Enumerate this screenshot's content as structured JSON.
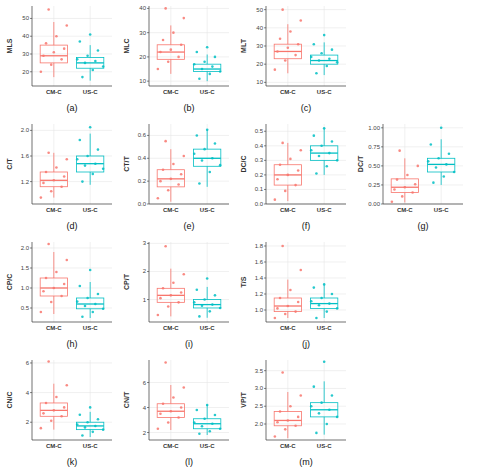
{
  "chart_data": [
    {
      "type": "box",
      "title": "(a)",
      "y_label": "MLS",
      "categories": [
        "CM-C",
        "US-C"
      ],
      "ylim": [
        12,
        57
      ],
      "yticks": [
        20,
        30,
        40,
        50
      ],
      "grid": true,
      "series": [
        {
          "color": "#f8766d",
          "box": [
            17,
            25,
            29,
            35,
            48
          ],
          "points": [
            20,
            24,
            27,
            29,
            31,
            33,
            36,
            40,
            46,
            55
          ]
        },
        {
          "color": "#00bfc4",
          "box": [
            15,
            22,
            25,
            28,
            35
          ],
          "points": [
            17,
            21,
            23,
            25,
            26,
            27,
            29,
            32,
            37,
            41
          ]
        }
      ]
    },
    {
      "type": "box",
      "title": "(b)",
      "y_label": "MLC",
      "categories": [
        "CM-C",
        "US-C"
      ],
      "ylim": [
        8,
        41
      ],
      "yticks": [
        10,
        20,
        30,
        40
      ],
      "grid": true,
      "series": [
        {
          "color": "#f8766d",
          "box": [
            13,
            19,
            22,
            25,
            33
          ],
          "points": [
            15,
            18,
            20,
            22,
            23,
            25,
            27,
            30,
            36,
            40
          ]
        },
        {
          "color": "#00bfc4",
          "box": [
            10,
            14,
            15,
            17,
            21
          ],
          "points": [
            11,
            13,
            14,
            15,
            16,
            17,
            18,
            20,
            22,
            24
          ]
        }
      ]
    },
    {
      "type": "box",
      "title": "(c)",
      "y_label": "MLT",
      "categories": [
        "CM-C",
        "US-C"
      ],
      "ylim": [
        8,
        52
      ],
      "yticks": [
        10,
        20,
        30,
        40,
        50
      ],
      "grid": true,
      "series": [
        {
          "color": "#f8766d",
          "box": [
            15,
            23,
            27,
            31,
            42
          ],
          "points": [
            17,
            22,
            25,
            27,
            29,
            31,
            34,
            38,
            44,
            50
          ]
        },
        {
          "color": "#00bfc4",
          "box": [
            14,
            20,
            22,
            25,
            32
          ],
          "points": [
            15,
            19,
            21,
            22,
            23,
            24,
            26,
            28,
            31,
            36
          ]
        }
      ]
    },
    {
      "type": "box",
      "title": "(d)",
      "y_label": "C/T",
      "categories": [
        "CM-C",
        "US-C"
      ],
      "ylim": [
        0.85,
        2.1
      ],
      "yticks": [
        1.2,
        1.6,
        {
          "value": 2,
          "label": "2.0"
        }
      ],
      "grid": true,
      "series": [
        {
          "color": "#f8766d",
          "box": [
            0.95,
            1.12,
            1.22,
            1.35,
            1.65
          ],
          "points": [
            0.95,
            1.05,
            1.12,
            1.18,
            1.22,
            1.28,
            1.35,
            1.42,
            1.55,
            1.65
          ]
        },
        {
          "color": "#00bfc4",
          "box": [
            1.15,
            1.35,
            1.48,
            1.6,
            1.95
          ],
          "points": [
            1.2,
            1.32,
            1.4,
            1.45,
            1.48,
            1.55,
            1.6,
            1.7,
            1.85,
            2.05
          ]
        }
      ]
    },
    {
      "type": "box",
      "title": "(e)",
      "y_label": "CT/T",
      "categories": [
        "CM-C",
        "US-C"
      ],
      "ylim": [
        0,
        0.7
      ],
      "yticks": [
        {
          "value": 0,
          "label": "0.0"
        },
        0.2,
        0.4,
        0.6
      ],
      "grid": true,
      "series": [
        {
          "color": "#f8766d",
          "box": [
            0.02,
            0.15,
            0.22,
            0.3,
            0.48
          ],
          "points": [
            0.05,
            0.12,
            0.17,
            0.2,
            0.22,
            0.26,
            0.3,
            0.35,
            0.42,
            0.55
          ]
        },
        {
          "color": "#00bfc4",
          "box": [
            0.15,
            0.33,
            0.4,
            0.48,
            0.65
          ],
          "points": [
            0.18,
            0.28,
            0.34,
            0.38,
            0.4,
            0.44,
            0.48,
            0.53,
            0.6,
            0.65
          ]
        }
      ]
    },
    {
      "type": "box",
      "title": "(f)",
      "y_label": "DC/C",
      "categories": [
        "CM-C",
        "US-C"
      ],
      "ylim": [
        0,
        0.55
      ],
      "yticks": [
        {
          "value": 0,
          "label": "0.0"
        },
        0.1,
        0.2,
        0.3,
        0.4,
        0.5
      ],
      "grid": true,
      "series": [
        {
          "color": "#f8766d",
          "box": [
            0.02,
            0.13,
            0.2,
            0.27,
            0.42
          ],
          "points": [
            0.03,
            0.09,
            0.13,
            0.17,
            0.2,
            0.23,
            0.27,
            0.31,
            0.37,
            0.42
          ]
        },
        {
          "color": "#00bfc4",
          "box": [
            0.2,
            0.3,
            0.35,
            0.4,
            0.52
          ],
          "points": [
            0.21,
            0.26,
            0.3,
            0.33,
            0.35,
            0.37,
            0.4,
            0.43,
            0.47,
            0.52
          ]
        }
      ]
    },
    {
      "type": "box",
      "title": "(g)",
      "y_label": "DC/T",
      "categories": [
        "CM-C",
        "US-C"
      ],
      "ylim": [
        0,
        1.05
      ],
      "yticks": [
        {
          "value": 0,
          "label": "0.00"
        },
        {
          "value": 0.25,
          "label": "0.25"
        },
        {
          "value": 0.5,
          "label": "0.50"
        },
        {
          "value": 0.75,
          "label": "0.75"
        },
        {
          "value": 1,
          "label": "1.00"
        }
      ],
      "grid": true,
      "series": [
        {
          "color": "#f8766d",
          "box": [
            0.02,
            0.15,
            0.22,
            0.33,
            0.6
          ],
          "points": [
            0.03,
            0.1,
            0.15,
            0.19,
            0.22,
            0.26,
            0.32,
            0.38,
            0.5,
            0.7
          ]
        },
        {
          "color": "#00bfc4",
          "box": [
            0.25,
            0.42,
            0.52,
            0.6,
            0.85
          ],
          "points": [
            0.28,
            0.36,
            0.42,
            0.48,
            0.52,
            0.56,
            0.6,
            0.66,
            0.78,
            1.0
          ]
        }
      ]
    },
    {
      "type": "box",
      "title": "(h)",
      "y_label": "CP/C",
      "categories": [
        "CM-C",
        "US-C"
      ],
      "ylim": [
        0.15,
        2.15
      ],
      "yticks": [
        0.5,
        {
          "value": 1,
          "label": "1.0"
        },
        1.5,
        {
          "value": 2,
          "label": "2.0"
        }
      ],
      "grid": true,
      "series": [
        {
          "color": "#f8766d",
          "box": [
            0.35,
            0.8,
            1.0,
            1.25,
            1.9
          ],
          "points": [
            0.4,
            0.65,
            0.8,
            0.92,
            1.0,
            1.1,
            1.25,
            1.4,
            1.7,
            2.1
          ]
        },
        {
          "color": "#00bfc4",
          "box": [
            0.25,
            0.48,
            0.6,
            0.75,
            1.15
          ],
          "points": [
            0.28,
            0.4,
            0.48,
            0.55,
            0.6,
            0.66,
            0.75,
            0.85,
            1.05,
            1.45
          ]
        }
      ]
    },
    {
      "type": "box",
      "title": "(i)",
      "y_label": "CP/T",
      "categories": [
        "CM-C",
        "US-C"
      ],
      "ylim": [
        0.2,
        3.05
      ],
      "yticks": [
        1,
        2,
        3
      ],
      "grid": true,
      "series": [
        {
          "color": "#f8766d",
          "box": [
            0.4,
            0.9,
            1.15,
            1.4,
            2.1
          ],
          "points": [
            0.45,
            0.75,
            0.9,
            1.05,
            1.15,
            1.25,
            1.4,
            1.6,
            1.9,
            2.9
          ]
        },
        {
          "color": "#00bfc4",
          "box": [
            0.35,
            0.7,
            0.82,
            1.0,
            1.45
          ],
          "points": [
            0.4,
            0.58,
            0.7,
            0.78,
            0.82,
            0.9,
            1.0,
            1.15,
            1.35,
            1.75
          ]
        }
      ]
    },
    {
      "type": "box",
      "title": "(j)",
      "y_label": "T/S",
      "categories": [
        "CM-C",
        "US-C"
      ],
      "ylim": [
        0.85,
        1.85
      ],
      "yticks": [
        {
          "value": 1,
          "label": "1.0"
        },
        1.2,
        1.4,
        1.6,
        1.8
      ],
      "grid": true,
      "series": [
        {
          "color": "#f8766d",
          "box": [
            0.9,
            0.98,
            1.05,
            1.15,
            1.38
          ],
          "points": [
            0.9,
            0.95,
            0.98,
            1.02,
            1.05,
            1.1,
            1.15,
            1.25,
            1.5,
            1.8
          ]
        },
        {
          "color": "#00bfc4",
          "box": [
            0.9,
            1.02,
            1.08,
            1.15,
            1.32
          ],
          "points": [
            0.9,
            0.98,
            1.02,
            1.06,
            1.08,
            1.11,
            1.15,
            1.2,
            1.28,
            1.32
          ]
        }
      ]
    },
    {
      "type": "box",
      "title": "(k)",
      "y_label": "CN/C",
      "categories": [
        "CM-C",
        "US-C"
      ],
      "ylim": [
        0.8,
        6.2
      ],
      "yticks": [
        2,
        4,
        6
      ],
      "grid": true,
      "series": [
        {
          "color": "#f8766d",
          "box": [
            1.5,
            2.4,
            2.8,
            3.3,
            4.6
          ],
          "points": [
            1.6,
            2.1,
            2.4,
            2.6,
            2.8,
            3.0,
            3.3,
            3.7,
            4.5,
            6.1
          ]
        },
        {
          "color": "#00bfc4",
          "box": [
            1.0,
            1.5,
            1.75,
            2.0,
            2.7
          ],
          "points": [
            1.1,
            1.35,
            1.5,
            1.65,
            1.75,
            1.85,
            2.0,
            2.2,
            2.5,
            3.0
          ]
        }
      ]
    },
    {
      "type": "box",
      "title": "(l)",
      "y_label": "CN/T",
      "categories": [
        "CM-C",
        "US-C"
      ],
      "ylim": [
        1.4,
        7.8
      ],
      "yticks": [
        2,
        4,
        6
      ],
      "grid": true,
      "series": [
        {
          "color": "#f8766d",
          "box": [
            2.2,
            3.2,
            3.7,
            4.3,
            5.8
          ],
          "points": [
            2.3,
            2.8,
            3.2,
            3.5,
            3.7,
            4.0,
            4.3,
            4.8,
            5.6,
            7.6
          ]
        },
        {
          "color": "#00bfc4",
          "box": [
            1.8,
            2.3,
            2.7,
            3.1,
            4.2
          ],
          "points": [
            1.9,
            2.1,
            2.3,
            2.5,
            2.7,
            2.8,
            3.1,
            3.4,
            3.8,
            4.2
          ]
        }
      ]
    },
    {
      "type": "box",
      "title": "(m)",
      "y_label": "VP/T",
      "categories": [
        "CM-C",
        "US-C"
      ],
      "ylim": [
        1.55,
        3.8
      ],
      "yticks": [
        {
          "value": 2,
          "label": "2.0"
        },
        2.5,
        {
          "value": 3,
          "label": "3.0"
        },
        3.5
      ],
      "grid": true,
      "series": [
        {
          "color": "#f8766d",
          "box": [
            1.6,
            1.95,
            2.1,
            2.35,
            2.9
          ],
          "points": [
            1.65,
            1.85,
            1.95,
            2.05,
            2.1,
            2.2,
            2.35,
            2.5,
            2.8,
            3.45
          ]
        },
        {
          "color": "#00bfc4",
          "box": [
            1.7,
            2.2,
            2.4,
            2.6,
            3.2
          ],
          "points": [
            1.75,
            2.0,
            2.2,
            2.3,
            2.4,
            2.5,
            2.6,
            2.8,
            3.05,
            3.75
          ]
        }
      ]
    }
  ]
}
